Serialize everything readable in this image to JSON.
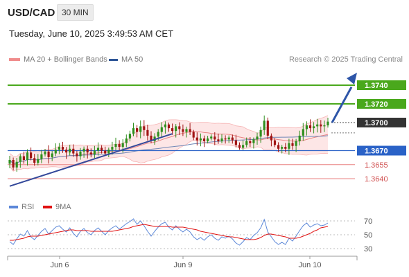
{
  "header": {
    "symbol": "USD/CAD",
    "interval": "30 MIN",
    "datetime": "Tuesday, June 10, 2025 3:49:53 AM CET",
    "credit": "Research © 2025 Trading Central"
  },
  "legend": [
    {
      "label": "MA 20 + Bollinger Bands",
      "color": "#f08c8c"
    },
    {
      "label": "MA 50",
      "color": "#2d5596"
    }
  ],
  "rsi_legend": [
    {
      "label": "RSI",
      "color": "#5b87d8"
    },
    {
      "label": "9MA",
      "color": "#e01010"
    }
  ],
  "colors": {
    "resistance": "#4aa81c",
    "support": "#2a62c7",
    "support_weak": "#e88080",
    "current": "#333333",
    "candle_up": "#2f8f1e",
    "candle_down": "#a01414",
    "band_fill": "#fde2e2",
    "trendline": "#33489a"
  },
  "chart_data": [
    {
      "type": "candlestick",
      "ylim": [
        1.362,
        1.376
      ],
      "x_ticks": [
        "Jun 6",
        "Jun 9",
        "Jun 10"
      ],
      "levels": [
        {
          "value": 1.374,
          "label": "1.3740",
          "kind": "resistance"
        },
        {
          "value": 1.372,
          "label": "1.3720",
          "kind": "resistance"
        },
        {
          "value": 1.37,
          "label": "1.3700",
          "kind": "current"
        },
        {
          "value": 1.367,
          "label": "1.3670",
          "kind": "support"
        },
        {
          "value": 1.3655,
          "label": "1.3655",
          "kind": "support_weak"
        },
        {
          "value": 1.364,
          "label": "1.3640",
          "kind": "support_weak"
        }
      ],
      "closes": [
        1.366,
        1.3652,
        1.3658,
        1.3664,
        1.366,
        1.3668,
        1.3662,
        1.3657,
        1.3661,
        1.3666,
        1.3669,
        1.3663,
        1.3667,
        1.3671,
        1.3674,
        1.3671,
        1.3668,
        1.3672,
        1.3667,
        1.3664,
        1.3669,
        1.3672,
        1.3668,
        1.3666,
        1.367,
        1.3673,
        1.367,
        1.3667,
        1.3671,
        1.3674,
        1.3677,
        1.3674,
        1.3678,
        1.3683,
        1.3688,
        1.3694,
        1.369,
        1.3696,
        1.3692,
        1.3686,
        1.368,
        1.3685,
        1.369,
        1.3695,
        1.3698,
        1.3694,
        1.3691,
        1.3696,
        1.3693,
        1.369,
        1.3693,
        1.369,
        1.3684,
        1.3681,
        1.3683,
        1.368,
        1.3683,
        1.3685,
        1.3682,
        1.368,
        1.3683,
        1.3682,
        1.3684,
        1.3681,
        1.3676,
        1.3673,
        1.3676,
        1.368,
        1.3678,
        1.3682,
        1.3685,
        1.3692,
        1.3702,
        1.3686,
        1.3681,
        1.3676,
        1.3672,
        1.3674,
        1.3672,
        1.3678,
        1.3675,
        1.368,
        1.3686,
        1.3693,
        1.3697,
        1.3694,
        1.3696,
        1.3698,
        1.3696,
        1.3697,
        1.3701
      ],
      "rsi": {
        "ylim": [
          25,
          75
        ],
        "ticks": [
          70,
          50,
          30
        ],
        "values": [
          40,
          36,
          44,
          51,
          48,
          56,
          47,
          43,
          49,
          55,
          59,
          51,
          56,
          61,
          63,
          58,
          54,
          60,
          52,
          47,
          55,
          59,
          53,
          50,
          56,
          60,
          55,
          50,
          56,
          60,
          63,
          58,
          62,
          66,
          69,
          73,
          65,
          70,
          63,
          55,
          48,
          55,
          61,
          66,
          68,
          61,
          57,
          63,
          58,
          54,
          58,
          54,
          47,
          43,
          46,
          42,
          47,
          50,
          45,
          42,
          47,
          45,
          48,
          44,
          38,
          35,
          40,
          46,
          43,
          49,
          53,
          60,
          72,
          54,
          47,
          40,
          36,
          39,
          36,
          45,
          41,
          48,
          56,
          63,
          67,
          61,
          64,
          66,
          63,
          64,
          67
        ],
        "ma": [
          42,
          42,
          43,
          44,
          45,
          47,
          48,
          48,
          48,
          49,
          50,
          51,
          52,
          53,
          54,
          55,
          56,
          57,
          57,
          56,
          56,
          56,
          56,
          55,
          55,
          55,
          55,
          55,
          55,
          55,
          56,
          57,
          58,
          59,
          60,
          62,
          63,
          64,
          65,
          64,
          63,
          62,
          62,
          62,
          62,
          62,
          61,
          61,
          61,
          61,
          60,
          59,
          58,
          57,
          55,
          54,
          53,
          52,
          51,
          50,
          49,
          48,
          47,
          47,
          46,
          45,
          44,
          43,
          43,
          43,
          44,
          46,
          49,
          51,
          51,
          50,
          49,
          48,
          47,
          45,
          45,
          45,
          46,
          48,
          50,
          52,
          55,
          57,
          60,
          61,
          62
        ]
      }
    }
  ]
}
